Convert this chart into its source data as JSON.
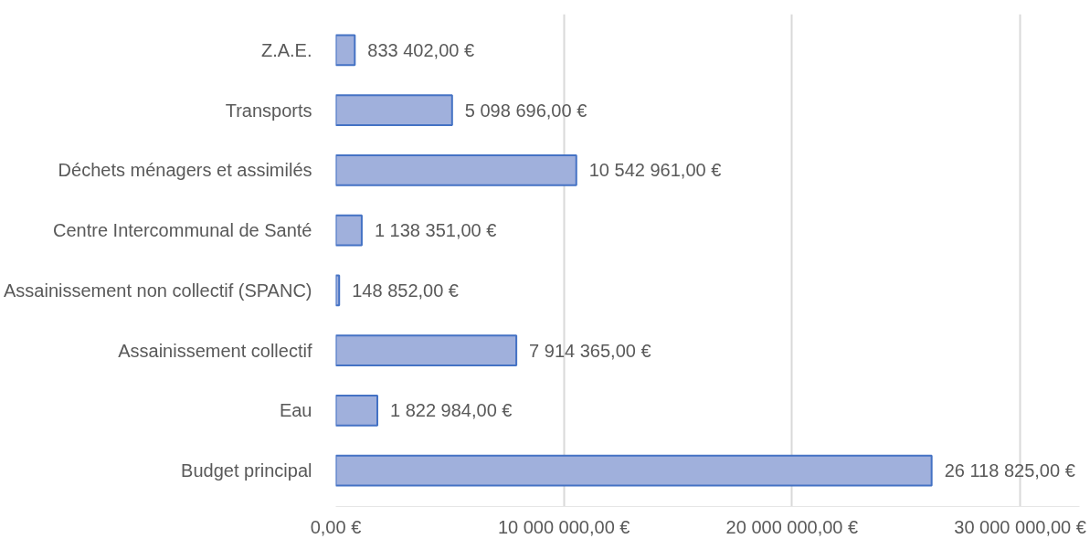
{
  "chart_data": {
    "type": "bar",
    "orientation": "horizontal",
    "categories": [
      "Z.A.E.",
      "Transports",
      "Déchets ménagers et assimilés",
      "Centre Intercommunal de Santé",
      "Assainissement non collectif (SPANC)",
      "Assainissement collectif",
      "Eau",
      "Budget principal"
    ],
    "values": [
      833402,
      5098696,
      10542961,
      1138351,
      148852,
      7914365,
      1822984,
      26118825
    ],
    "value_labels": [
      "833 402,00 €",
      "5 098 696,00 €",
      "10 542 961,00 €",
      "1 138 351,00 €",
      "148 852,00 €",
      "7 914 365,00 €",
      "1 822 984,00 €",
      "26 118 825,00 €"
    ],
    "color": "#a0b0dc",
    "xlim": [
      0,
      32600000
    ],
    "xticks": [
      {
        "value": 0,
        "label": "0,00 €"
      },
      {
        "value": 10000000,
        "label": "10 000 000,00 €"
      },
      {
        "value": 20000000,
        "label": "20 000 000,00 €"
      },
      {
        "value": 30000000,
        "label": "30 000 000,00 €"
      }
    ],
    "grid": "x"
  }
}
